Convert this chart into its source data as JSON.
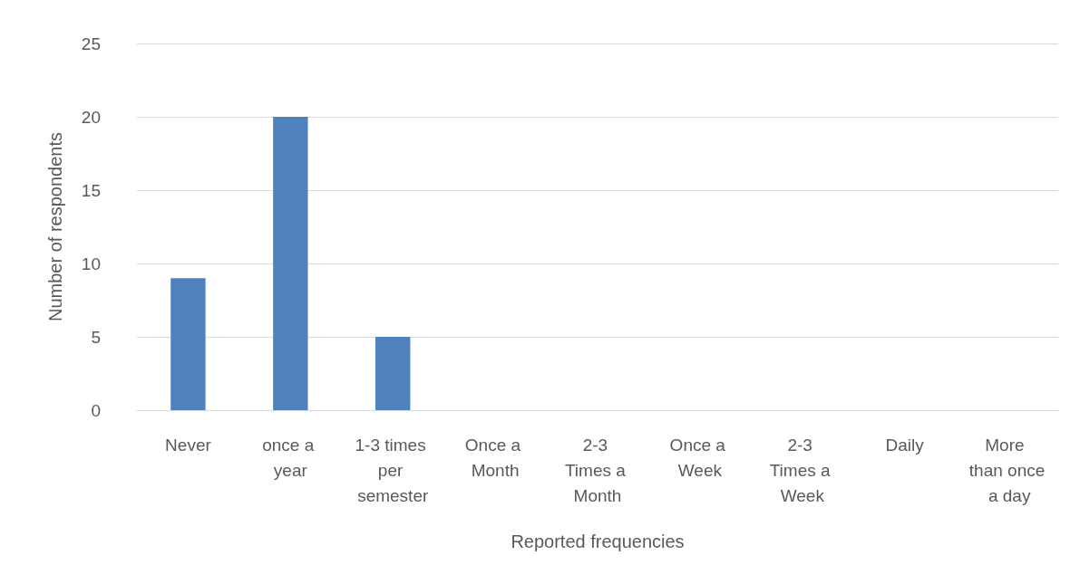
{
  "chart_data": {
    "type": "bar",
    "xlabel": "Reported frequencies",
    "ylabel": "Number of respondents",
    "categories": [
      "Never",
      "once a year",
      "1-3 times per semester",
      "Once a Month",
      "2-3 Times a Month",
      "Once a Week",
      "2-3 Times a Week",
      "Daily",
      "More than once a day"
    ],
    "values": [
      9,
      20,
      5,
      0,
      0,
      0,
      0,
      0,
      0
    ],
    "color": "#4f81bd",
    "ylim": [
      0,
      25
    ],
    "yticks": [
      0,
      5,
      10,
      15,
      20,
      25
    ],
    "grid": "y"
  }
}
